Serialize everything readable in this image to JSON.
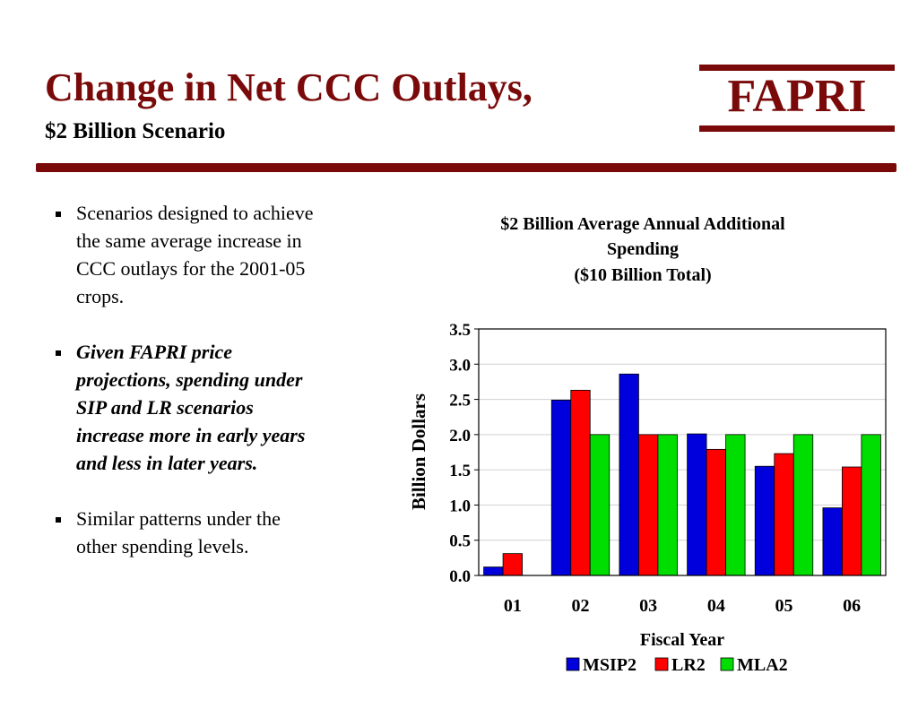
{
  "header": {
    "title": "Change in Net CCC Outlays,",
    "subtitle": "$2 Billion Scenario",
    "logo_text": "FAPRI"
  },
  "colors": {
    "accent": "#7a0a0a"
  },
  "bullets": [
    {
      "text": "Scenarios designed to achieve the same average increase in CCC outlays for the 2001-05 crops.",
      "style": "normal"
    },
    {
      "text": "Given FAPRI price projections, spending under SIP and LR scenarios increase more in early years and less in later years.",
      "style": "bold-italic"
    },
    {
      "text": "Similar patterns under the other spending levels.",
      "style": "normal"
    }
  ],
  "chart_data": {
    "type": "bar",
    "title_lines": [
      "$2 Billion Average Annual Additional",
      "Spending",
      "($10 Billion Total)"
    ],
    "xlabel": "Fiscal Year",
    "ylabel": "Billion Dollars",
    "categories": [
      "01",
      "02",
      "03",
      "04",
      "05",
      "06"
    ],
    "series": [
      {
        "name": "MSIP2",
        "color": "#0000dd",
        "values": [
          0.12,
          2.49,
          2.86,
          2.01,
          1.55,
          0.96
        ]
      },
      {
        "name": "LR2",
        "color": "#ff0000",
        "values": [
          0.31,
          2.63,
          2.0,
          1.79,
          1.73,
          1.54
        ]
      },
      {
        "name": "MLA2",
        "color": "#00dd00",
        "values": [
          0.0,
          2.0,
          2.0,
          2.0,
          2.0,
          2.0
        ]
      }
    ],
    "ylim": [
      0,
      3.5
    ],
    "yticks": [
      "0.0",
      "0.5",
      "1.0",
      "1.5",
      "2.0",
      "2.5",
      "3.0",
      "3.5"
    ],
    "grid": true,
    "legend_position": "bottom"
  }
}
